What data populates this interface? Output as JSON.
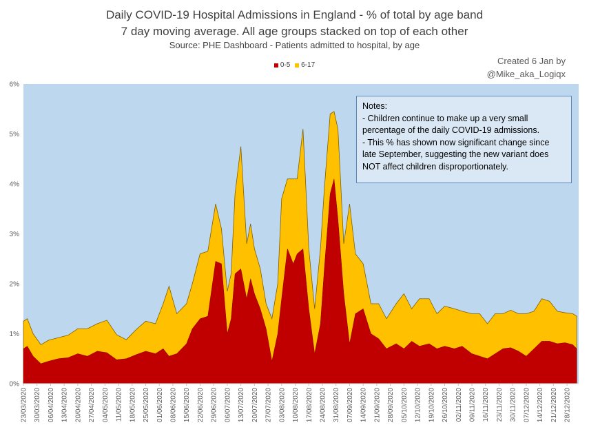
{
  "title_line1": "Daily COVID-19 Hospital Admissions in England - % of total by age band",
  "title_line2": "7 day moving average. All age groups stacked on top of each other",
  "title_line3": "Source: PHE Dashboard - Patients admitted to hospital, by age",
  "credit_line1": "Created 6 Jan by",
  "credit_line2": "@Mike_aka_Logiqx",
  "notes": [
    "Notes:",
    "- Children continue to make up a very small",
    "percentage of the daily COVID-19 admissions.",
    "- This % has shown now significant change since",
    "late September, suggesting the new variant does",
    "NOT affect children disproportionately."
  ],
  "colors": {
    "plot_bg": "#bdd7ee",
    "series_0_5": "#c00000",
    "series_6_17": "#ffc000",
    "edge": "#7f6000"
  },
  "chart_data": {
    "type": "area",
    "stacked": true,
    "title": "Daily COVID-19 Hospital Admissions in England - % of total by age band",
    "subtitle": "7 day moving average. All age groups stacked on top of each other",
    "legend": [
      "0-5",
      "6-17"
    ],
    "legend_position": "top",
    "ylim": [
      0,
      6
    ],
    "yticks": [
      "0%",
      "1%",
      "2%",
      "3%",
      "4%",
      "5%",
      "6%"
    ],
    "xlim": [
      "2020-03-23",
      "2021-01-03"
    ],
    "xticks": [
      "23/03/2020",
      "30/03/2020",
      "06/04/2020",
      "13/04/2020",
      "20/04/2020",
      "27/04/2020",
      "04/05/2020",
      "11/05/2020",
      "18/05/2020",
      "25/05/2020",
      "01/06/2020",
      "08/06/2020",
      "15/06/2020",
      "22/06/2020",
      "29/06/2020",
      "06/07/2020",
      "13/07/2020",
      "20/07/2020",
      "27/07/2020",
      "03/08/2020",
      "10/08/2020",
      "17/08/2020",
      "24/08/2020",
      "31/08/2020",
      "07/09/2020",
      "14/09/2020",
      "21/09/2020",
      "28/09/2020",
      "05/10/2020",
      "12/10/2020",
      "19/10/2020",
      "26/10/2020",
      "02/11/2020",
      "09/11/2020",
      "16/11/2020",
      "23/11/2020",
      "30/11/2020",
      "07/12/2020",
      "14/12/2020",
      "21/12/2020",
      "28/12/2020"
    ],
    "grid": false,
    "series": [
      {
        "name": "0-5",
        "points": [
          [
            "2020-03-23",
            0.7
          ],
          [
            "2020-03-25",
            0.75
          ],
          [
            "2020-03-28",
            0.55
          ],
          [
            "2020-04-01",
            0.4
          ],
          [
            "2020-04-05",
            0.45
          ],
          [
            "2020-04-10",
            0.5
          ],
          [
            "2020-04-15",
            0.52
          ],
          [
            "2020-04-20",
            0.6
          ],
          [
            "2020-04-25",
            0.55
          ],
          [
            "2020-04-30",
            0.65
          ],
          [
            "2020-05-05",
            0.62
          ],
          [
            "2020-05-10",
            0.48
          ],
          [
            "2020-05-15",
            0.5
          ],
          [
            "2020-05-20",
            0.58
          ],
          [
            "2020-05-25",
            0.65
          ],
          [
            "2020-05-30",
            0.6
          ],
          [
            "2020-06-03",
            0.7
          ],
          [
            "2020-06-06",
            0.55
          ],
          [
            "2020-06-10",
            0.6
          ],
          [
            "2020-06-15",
            0.8
          ],
          [
            "2020-06-18",
            1.1
          ],
          [
            "2020-06-22",
            1.3
          ],
          [
            "2020-06-26",
            1.35
          ],
          [
            "2020-06-30",
            2.45
          ],
          [
            "2020-07-03",
            2.4
          ],
          [
            "2020-07-06",
            1.0
          ],
          [
            "2020-07-08",
            1.3
          ],
          [
            "2020-07-10",
            2.2
          ],
          [
            "2020-07-13",
            2.3
          ],
          [
            "2020-07-16",
            1.7
          ],
          [
            "2020-07-18",
            2.1
          ],
          [
            "2020-07-20",
            1.8
          ],
          [
            "2020-07-23",
            1.5
          ],
          [
            "2020-07-26",
            1.1
          ],
          [
            "2020-07-29",
            0.45
          ],
          [
            "2020-08-01",
            1.0
          ],
          [
            "2020-08-03",
            1.7
          ],
          [
            "2020-08-06",
            2.7
          ],
          [
            "2020-08-09",
            2.4
          ],
          [
            "2020-08-11",
            2.6
          ],
          [
            "2020-08-14",
            2.7
          ],
          [
            "2020-08-17",
            1.5
          ],
          [
            "2020-08-20",
            0.6
          ],
          [
            "2020-08-23",
            1.2
          ],
          [
            "2020-08-25",
            2.3
          ],
          [
            "2020-08-28",
            3.8
          ],
          [
            "2020-08-30",
            4.1
          ],
          [
            "2020-09-01",
            3.3
          ],
          [
            "2020-09-04",
            1.8
          ],
          [
            "2020-09-07",
            0.8
          ],
          [
            "2020-09-10",
            1.4
          ],
          [
            "2020-09-14",
            1.5
          ],
          [
            "2020-09-18",
            1.0
          ],
          [
            "2020-09-22",
            0.9
          ],
          [
            "2020-09-26",
            0.7
          ],
          [
            "2020-10-01",
            0.8
          ],
          [
            "2020-10-05",
            0.7
          ],
          [
            "2020-10-09",
            0.85
          ],
          [
            "2020-10-13",
            0.75
          ],
          [
            "2020-10-18",
            0.8
          ],
          [
            "2020-10-22",
            0.7
          ],
          [
            "2020-10-26",
            0.75
          ],
          [
            "2020-10-31",
            0.7
          ],
          [
            "2020-11-04",
            0.75
          ],
          [
            "2020-11-09",
            0.6
          ],
          [
            "2020-11-13",
            0.55
          ],
          [
            "2020-11-17",
            0.5
          ],
          [
            "2020-11-21",
            0.6
          ],
          [
            "2020-11-25",
            0.7
          ],
          [
            "2020-11-29",
            0.72
          ],
          [
            "2020-12-03",
            0.65
          ],
          [
            "2020-12-07",
            0.55
          ],
          [
            "2020-12-11",
            0.7
          ],
          [
            "2020-12-15",
            0.85
          ],
          [
            "2020-12-19",
            0.85
          ],
          [
            "2020-12-23",
            0.8
          ],
          [
            "2020-12-27",
            0.82
          ],
          [
            "2020-12-31",
            0.78
          ],
          [
            "2021-01-02",
            0.7
          ]
        ]
      },
      {
        "name": "6-17",
        "points": [
          [
            "2020-03-23",
            0.55
          ],
          [
            "2020-03-25",
            0.55
          ],
          [
            "2020-03-28",
            0.45
          ],
          [
            "2020-04-01",
            0.38
          ],
          [
            "2020-04-05",
            0.42
          ],
          [
            "2020-04-10",
            0.42
          ],
          [
            "2020-04-15",
            0.45
          ],
          [
            "2020-04-20",
            0.5
          ],
          [
            "2020-04-25",
            0.55
          ],
          [
            "2020-04-30",
            0.55
          ],
          [
            "2020-05-05",
            0.65
          ],
          [
            "2020-05-10",
            0.5
          ],
          [
            "2020-05-15",
            0.38
          ],
          [
            "2020-05-20",
            0.5
          ],
          [
            "2020-05-25",
            0.6
          ],
          [
            "2020-05-30",
            0.6
          ],
          [
            "2020-06-03",
            0.9
          ],
          [
            "2020-06-06",
            1.4
          ],
          [
            "2020-06-10",
            0.8
          ],
          [
            "2020-06-15",
            0.8
          ],
          [
            "2020-06-18",
            0.9
          ],
          [
            "2020-06-22",
            1.3
          ],
          [
            "2020-06-26",
            1.3
          ],
          [
            "2020-06-30",
            1.15
          ],
          [
            "2020-07-03",
            0.7
          ],
          [
            "2020-07-06",
            0.85
          ],
          [
            "2020-07-08",
            0.9
          ],
          [
            "2020-07-10",
            1.6
          ],
          [
            "2020-07-13",
            2.45
          ],
          [
            "2020-07-16",
            1.1
          ],
          [
            "2020-07-18",
            1.1
          ],
          [
            "2020-07-20",
            0.9
          ],
          [
            "2020-07-23",
            0.8
          ],
          [
            "2020-07-26",
            0.5
          ],
          [
            "2020-07-29",
            0.85
          ],
          [
            "2020-08-01",
            1.0
          ],
          [
            "2020-08-03",
            2.0
          ],
          [
            "2020-08-06",
            1.4
          ],
          [
            "2020-08-09",
            1.7
          ],
          [
            "2020-08-11",
            1.5
          ],
          [
            "2020-08-14",
            2.4
          ],
          [
            "2020-08-17",
            1.2
          ],
          [
            "2020-08-20",
            0.9
          ],
          [
            "2020-08-23",
            1.5
          ],
          [
            "2020-08-25",
            1.6
          ],
          [
            "2020-08-28",
            1.6
          ],
          [
            "2020-08-30",
            1.35
          ],
          [
            "2020-09-01",
            1.8
          ],
          [
            "2020-09-04",
            1.0
          ],
          [
            "2020-09-07",
            2.8
          ],
          [
            "2020-09-10",
            1.2
          ],
          [
            "2020-09-14",
            0.9
          ],
          [
            "2020-09-18",
            0.6
          ],
          [
            "2020-09-22",
            0.7
          ],
          [
            "2020-09-26",
            0.6
          ],
          [
            "2020-10-01",
            0.8
          ],
          [
            "2020-10-05",
            1.1
          ],
          [
            "2020-10-09",
            0.65
          ],
          [
            "2020-10-13",
            0.95
          ],
          [
            "2020-10-18",
            0.9
          ],
          [
            "2020-10-22",
            0.7
          ],
          [
            "2020-10-26",
            0.8
          ],
          [
            "2020-10-31",
            0.8
          ],
          [
            "2020-11-04",
            0.7
          ],
          [
            "2020-11-09",
            0.8
          ],
          [
            "2020-11-13",
            0.85
          ],
          [
            "2020-11-17",
            0.7
          ],
          [
            "2020-11-21",
            0.8
          ],
          [
            "2020-11-25",
            0.7
          ],
          [
            "2020-11-29",
            0.75
          ],
          [
            "2020-12-03",
            0.75
          ],
          [
            "2020-12-07",
            0.85
          ],
          [
            "2020-12-11",
            0.75
          ],
          [
            "2020-12-15",
            0.85
          ],
          [
            "2020-12-19",
            0.8
          ],
          [
            "2020-12-23",
            0.65
          ],
          [
            "2020-12-27",
            0.6
          ],
          [
            "2020-12-31",
            0.62
          ],
          [
            "2021-01-02",
            0.65
          ]
        ]
      }
    ]
  }
}
